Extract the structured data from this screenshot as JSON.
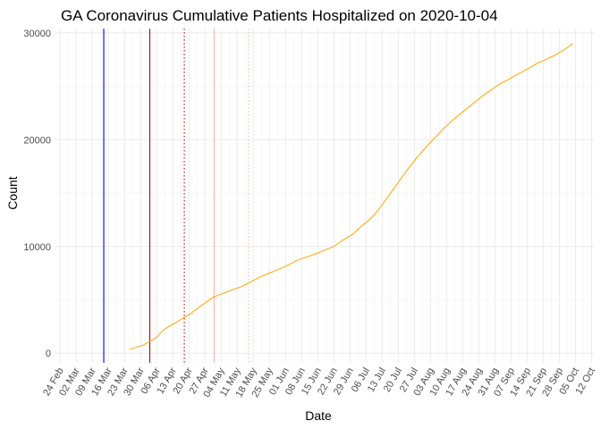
{
  "chart_data": {
    "type": "line",
    "title": "GA Coronavirus Cumulative Patients Hospitalized on 2020-10-04",
    "xlabel": "Date",
    "ylabel": "Count",
    "x_axis_type": "date",
    "xlim": [
      "2020-02-22",
      "2020-10-13"
    ],
    "ylim": [
      -900,
      30400
    ],
    "grid": true,
    "legend": "none",
    "x_ticks": [
      {
        "date": "2020-02-24",
        "label": "24 Feb"
      },
      {
        "date": "2020-03-02",
        "label": "02 Mar"
      },
      {
        "date": "2020-03-09",
        "label": "09 Mar"
      },
      {
        "date": "2020-03-16",
        "label": "16 Mar"
      },
      {
        "date": "2020-03-23",
        "label": "23 Mar"
      },
      {
        "date": "2020-03-30",
        "label": "30 Mar"
      },
      {
        "date": "2020-04-06",
        "label": "06 Apr"
      },
      {
        "date": "2020-04-13",
        "label": "13 Apr"
      },
      {
        "date": "2020-04-20",
        "label": "20 Apr"
      },
      {
        "date": "2020-04-27",
        "label": "27 Apr"
      },
      {
        "date": "2020-05-04",
        "label": "04 May"
      },
      {
        "date": "2020-05-11",
        "label": "11 May"
      },
      {
        "date": "2020-05-18",
        "label": "18 May"
      },
      {
        "date": "2020-05-25",
        "label": "25 May"
      },
      {
        "date": "2020-06-01",
        "label": "01 Jun"
      },
      {
        "date": "2020-06-08",
        "label": "08 Jun"
      },
      {
        "date": "2020-06-15",
        "label": "15 Jun"
      },
      {
        "date": "2020-06-22",
        "label": "22 Jun"
      },
      {
        "date": "2020-06-29",
        "label": "29 Jun"
      },
      {
        "date": "2020-07-06",
        "label": "06 Jul"
      },
      {
        "date": "2020-07-13",
        "label": "13 Jul"
      },
      {
        "date": "2020-07-20",
        "label": "20 Jul"
      },
      {
        "date": "2020-07-27",
        "label": "27 Jul"
      },
      {
        "date": "2020-08-03",
        "label": "03 Aug"
      },
      {
        "date": "2020-08-10",
        "label": "10 Aug"
      },
      {
        "date": "2020-08-17",
        "label": "17 Aug"
      },
      {
        "date": "2020-08-24",
        "label": "24 Aug"
      },
      {
        "date": "2020-08-31",
        "label": "31 Aug"
      },
      {
        "date": "2020-09-07",
        "label": "07 Sep"
      },
      {
        "date": "2020-09-14",
        "label": "14 Sep"
      },
      {
        "date": "2020-09-21",
        "label": "21 Sep"
      },
      {
        "date": "2020-09-28",
        "label": "28 Sep"
      },
      {
        "date": "2020-10-05",
        "label": "05 Oct"
      },
      {
        "date": "2020-10-12",
        "label": "12 Oct"
      }
    ],
    "y_ticks": [
      {
        "value": 0,
        "label": "0"
      },
      {
        "value": 10000,
        "label": "10000"
      },
      {
        "value": 20000,
        "label": "20000"
      },
      {
        "value": 30000,
        "label": "30000"
      }
    ],
    "reference_lines": [
      {
        "date": "2020-03-14",
        "color": "#0000ff",
        "style": "solid"
      },
      {
        "date": "2020-04-03",
        "color": "#cc0000",
        "style": "solid"
      },
      {
        "date": "2020-04-18",
        "color": "#cc0000",
        "style": "dotted"
      },
      {
        "date": "2020-05-01",
        "color": "#f4b6b6",
        "style": "solid"
      },
      {
        "date": "2020-05-16",
        "color": "#f4b6b6",
        "style": "dotted"
      }
    ],
    "series": [
      {
        "color": "#ffa500",
        "points": [
          {
            "x": "2020-03-25",
            "y": 350
          },
          {
            "x": "2020-03-28",
            "y": 550
          },
          {
            "x": "2020-03-31",
            "y": 750
          },
          {
            "x": "2020-04-03",
            "y": 1100
          },
          {
            "x": "2020-04-06",
            "y": 1500
          },
          {
            "x": "2020-04-09",
            "y": 2200
          },
          {
            "x": "2020-04-12",
            "y": 2600
          },
          {
            "x": "2020-04-15",
            "y": 2950
          },
          {
            "x": "2020-04-18",
            "y": 3350
          },
          {
            "x": "2020-04-21",
            "y": 3750
          },
          {
            "x": "2020-04-24",
            "y": 4250
          },
          {
            "x": "2020-04-27",
            "y": 4700
          },
          {
            "x": "2020-05-01",
            "y": 5300
          },
          {
            "x": "2020-05-05",
            "y": 5600
          },
          {
            "x": "2020-05-09",
            "y": 5950
          },
          {
            "x": "2020-05-13",
            "y": 6250
          },
          {
            "x": "2020-05-17",
            "y": 6700
          },
          {
            "x": "2020-05-21",
            "y": 7150
          },
          {
            "x": "2020-05-25",
            "y": 7500
          },
          {
            "x": "2020-05-29",
            "y": 7850
          },
          {
            "x": "2020-06-02",
            "y": 8250
          },
          {
            "x": "2020-06-06",
            "y": 8700
          },
          {
            "x": "2020-06-10",
            "y": 9000
          },
          {
            "x": "2020-06-14",
            "y": 9300
          },
          {
            "x": "2020-06-18",
            "y": 9650
          },
          {
            "x": "2020-06-22",
            "y": 10000
          },
          {
            "x": "2020-06-26",
            "y": 10600
          },
          {
            "x": "2020-06-30",
            "y": 11100
          },
          {
            "x": "2020-07-04",
            "y": 11900
          },
          {
            "x": "2020-07-08",
            "y": 12600
          },
          {
            "x": "2020-07-12",
            "y": 13600
          },
          {
            "x": "2020-07-16",
            "y": 14800
          },
          {
            "x": "2020-07-20",
            "y": 16000
          },
          {
            "x": "2020-07-24",
            "y": 17200
          },
          {
            "x": "2020-07-28",
            "y": 18300
          },
          {
            "x": "2020-08-01",
            "y": 19300
          },
          {
            "x": "2020-08-05",
            "y": 20200
          },
          {
            "x": "2020-08-09",
            "y": 21100
          },
          {
            "x": "2020-08-13",
            "y": 21900
          },
          {
            "x": "2020-08-17",
            "y": 22600
          },
          {
            "x": "2020-08-21",
            "y": 23300
          },
          {
            "x": "2020-08-25",
            "y": 24000
          },
          {
            "x": "2020-08-29",
            "y": 24600
          },
          {
            "x": "2020-09-02",
            "y": 25200
          },
          {
            "x": "2020-09-06",
            "y": 25650
          },
          {
            "x": "2020-09-10",
            "y": 26150
          },
          {
            "x": "2020-09-14",
            "y": 26600
          },
          {
            "x": "2020-09-18",
            "y": 27100
          },
          {
            "x": "2020-09-22",
            "y": 27500
          },
          {
            "x": "2020-09-26",
            "y": 27900
          },
          {
            "x": "2020-09-30",
            "y": 28400
          },
          {
            "x": "2020-10-04",
            "y": 29000
          }
        ]
      }
    ]
  }
}
